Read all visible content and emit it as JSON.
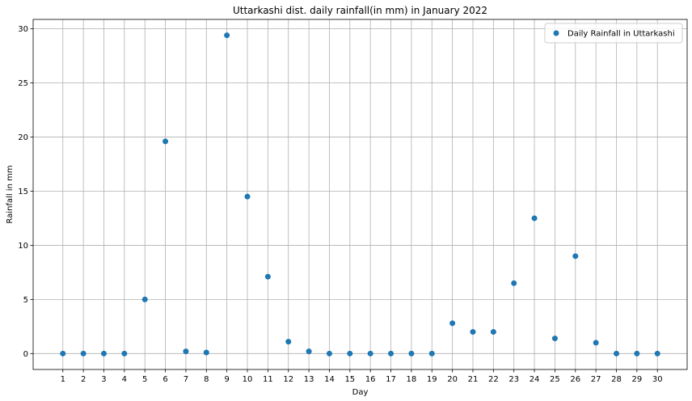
{
  "chart_data": {
    "type": "scatter",
    "title": "Uttarkashi dist. daily rainfall(in mm) in January 2022",
    "xlabel": "Day",
    "ylabel": "Rainfall in mm",
    "x": [
      1,
      2,
      3,
      4,
      5,
      6,
      7,
      8,
      9,
      10,
      11,
      12,
      13,
      14,
      15,
      16,
      17,
      18,
      19,
      20,
      21,
      22,
      23,
      24,
      25,
      26,
      27,
      28,
      29,
      30
    ],
    "series": [
      {
        "name": "Daily Rainfall in Uttarkashi",
        "values": [
          0,
          0,
          0,
          0,
          5.0,
          19.6,
          0.2,
          0.1,
          29.4,
          14.5,
          7.1,
          1.1,
          0.2,
          0,
          0,
          0,
          0,
          0,
          0,
          2.8,
          2.0,
          2.0,
          6.5,
          12.5,
          1.4,
          9.0,
          1.0,
          0,
          0,
          0
        ],
        "color": "#1f77b4"
      }
    ],
    "xlim": [
      -0.45,
      31.45
    ],
    "ylim": [
      -1.47,
      30.87
    ],
    "yticks": [
      0,
      5,
      10,
      15,
      20,
      25,
      30
    ],
    "grid": true,
    "legend_position": "top-right"
  }
}
